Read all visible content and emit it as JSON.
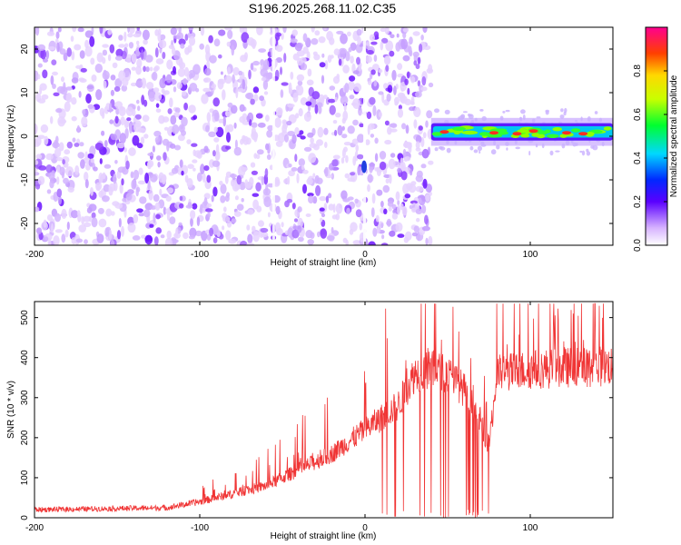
{
  "title": "S196.2025.268.11.02.C35",
  "chart_data": [
    {
      "type": "heatmap",
      "title": "S196.2025.268.11.02.C35",
      "xlabel": "Height of straight line (km)",
      "ylabel": "Frequency (Hz)",
      "xlim": [
        -200,
        150
      ],
      "ylim": [
        -25,
        25
      ],
      "xticks": [
        -200,
        -100,
        0,
        100
      ],
      "yticks": [
        20,
        10,
        0,
        -10,
        -20
      ],
      "noise_region_x": [
        -200,
        40
      ],
      "signal_region_x": [
        40,
        150
      ],
      "signal_band_center_hz": 1,
      "signal_band_halfwidth_hz": 2,
      "vertical_artifacts_x": [
        -55,
        0
      ],
      "colorbar": {
        "label": "Normalized spectral amplitude",
        "range": [
          0,
          1
        ],
        "ticks": [
          0.0,
          0.2,
          0.4,
          0.6,
          0.8
        ]
      }
    },
    {
      "type": "line",
      "xlabel": "Height of straight line (km)",
      "ylabel": "SNR (10 * v/v)",
      "xlim": [
        -200,
        150
      ],
      "ylim": [
        0,
        540
      ],
      "xticks": [
        -200,
        -100,
        0,
        100
      ],
      "yticks": [
        0,
        100,
        200,
        300,
        400,
        500
      ],
      "series": [
        {
          "name": "SNR",
          "color": "#f03535",
          "x": [
            -200,
            -120,
            -100,
            -80,
            -60,
            -40,
            -20,
            0,
            20,
            30,
            40,
            50,
            60,
            70,
            75,
            80,
            100,
            120,
            150
          ],
          "y": [
            20,
            25,
            40,
            60,
            80,
            120,
            160,
            220,
            280,
            360,
            370,
            360,
            320,
            240,
            180,
            360,
            370,
            375,
            380
          ]
        }
      ]
    }
  ]
}
